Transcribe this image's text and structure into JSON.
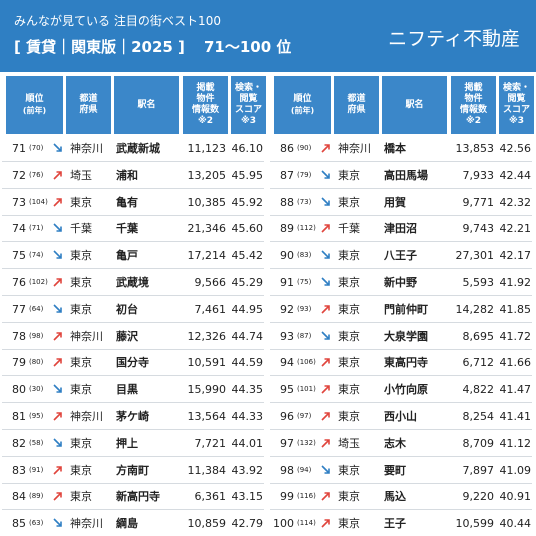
{
  "header": {
    "title": "みんなが見ている 注目の街ベスト100",
    "edition": "[ 賃貸｜関東版｜2025 ]",
    "range": "71〜100 位",
    "brand": "ニフティ不動産"
  },
  "columns": [
    [
      "順位",
      "(前年)"
    ],
    [
      "都道",
      "府県"
    ],
    [
      "駅名"
    ],
    [
      "掲載",
      "物件",
      "情報数",
      "※2"
    ],
    [
      "検索・",
      "閲覧",
      "スコア",
      "※3"
    ]
  ],
  "tables": [
    {
      "rows": [
        {
          "rank": "71",
          "prev": "(70)",
          "trend": "down",
          "pref": "神奈川",
          "station": "武蔵新城",
          "listings": "11,123",
          "score": "46.10"
        },
        {
          "rank": "72",
          "prev": "(76)",
          "trend": "up",
          "pref": "埼玉",
          "station": "浦和",
          "listings": "13,205",
          "score": "45.95"
        },
        {
          "rank": "73",
          "prev": "(104)",
          "trend": "up",
          "pref": "東京",
          "station": "亀有",
          "listings": "10,385",
          "score": "45.92"
        },
        {
          "rank": "74",
          "prev": "(71)",
          "trend": "down",
          "pref": "千葉",
          "station": "千葉",
          "listings": "21,346",
          "score": "45.60"
        },
        {
          "rank": "75",
          "prev": "(74)",
          "trend": "down",
          "pref": "東京",
          "station": "亀戸",
          "listings": "17,214",
          "score": "45.42"
        },
        {
          "rank": "76",
          "prev": "(102)",
          "trend": "up",
          "pref": "東京",
          "station": "武蔵境",
          "listings": "9,566",
          "score": "45.29"
        },
        {
          "rank": "77",
          "prev": "(64)",
          "trend": "down",
          "pref": "東京",
          "station": "初台",
          "listings": "7,461",
          "score": "44.95"
        },
        {
          "rank": "78",
          "prev": "(98)",
          "trend": "up",
          "pref": "神奈川",
          "station": "藤沢",
          "listings": "12,326",
          "score": "44.74"
        },
        {
          "rank": "79",
          "prev": "(80)",
          "trend": "up",
          "pref": "東京",
          "station": "国分寺",
          "listings": "10,591",
          "score": "44.59"
        },
        {
          "rank": "80",
          "prev": "(30)",
          "trend": "down",
          "pref": "東京",
          "station": "目黒",
          "listings": "15,990",
          "score": "44.35"
        },
        {
          "rank": "81",
          "prev": "(95)",
          "trend": "up",
          "pref": "神奈川",
          "station": "茅ケ崎",
          "listings": "13,564",
          "score": "44.33"
        },
        {
          "rank": "82",
          "prev": "(58)",
          "trend": "down",
          "pref": "東京",
          "station": "押上",
          "listings": "7,721",
          "score": "44.01"
        },
        {
          "rank": "83",
          "prev": "(91)",
          "trend": "up",
          "pref": "東京",
          "station": "方南町",
          "listings": "11,384",
          "score": "43.92"
        },
        {
          "rank": "84",
          "prev": "(89)",
          "trend": "up",
          "pref": "東京",
          "station": "新高円寺",
          "listings": "6,361",
          "score": "43.15"
        },
        {
          "rank": "85",
          "prev": "(63)",
          "trend": "down",
          "pref": "神奈川",
          "station": "綱島",
          "listings": "10,859",
          "score": "42.79"
        }
      ]
    },
    {
      "rows": [
        {
          "rank": "86",
          "prev": "(90)",
          "trend": "up",
          "pref": "神奈川",
          "station": "橋本",
          "listings": "13,853",
          "score": "42.56"
        },
        {
          "rank": "87",
          "prev": "(79)",
          "trend": "down",
          "pref": "東京",
          "station": "高田馬場",
          "listings": "7,933",
          "score": "42.44"
        },
        {
          "rank": "88",
          "prev": "(73)",
          "trend": "down",
          "pref": "東京",
          "station": "用賀",
          "listings": "9,771",
          "score": "42.32"
        },
        {
          "rank": "89",
          "prev": "(112)",
          "trend": "up",
          "pref": "千葉",
          "station": "津田沼",
          "listings": "9,743",
          "score": "42.21"
        },
        {
          "rank": "90",
          "prev": "(83)",
          "trend": "down",
          "pref": "東京",
          "station": "八王子",
          "listings": "27,301",
          "score": "42.17"
        },
        {
          "rank": "91",
          "prev": "(75)",
          "trend": "down",
          "pref": "東京",
          "station": "新中野",
          "listings": "5,593",
          "score": "41.92"
        },
        {
          "rank": "92",
          "prev": "(93)",
          "trend": "up",
          "pref": "東京",
          "station": "門前仲町",
          "listings": "14,282",
          "score": "41.85"
        },
        {
          "rank": "93",
          "prev": "(87)",
          "trend": "down",
          "pref": "東京",
          "station": "大泉学園",
          "listings": "8,695",
          "score": "41.72"
        },
        {
          "rank": "94",
          "prev": "(106)",
          "trend": "up",
          "pref": "東京",
          "station": "東高円寺",
          "listings": "6,712",
          "score": "41.66"
        },
        {
          "rank": "95",
          "prev": "(101)",
          "trend": "up",
          "pref": "東京",
          "station": "小竹向原",
          "listings": "4,822",
          "score": "41.47"
        },
        {
          "rank": "96",
          "prev": "(97)",
          "trend": "up",
          "pref": "東京",
          "station": "西小山",
          "listings": "8,254",
          "score": "41.41"
        },
        {
          "rank": "97",
          "prev": "(132)",
          "trend": "up",
          "pref": "埼玉",
          "station": "志木",
          "listings": "8,709",
          "score": "41.12"
        },
        {
          "rank": "98",
          "prev": "(94)",
          "trend": "down",
          "pref": "東京",
          "station": "要町",
          "listings": "7,897",
          "score": "41.09"
        },
        {
          "rank": "99",
          "prev": "(116)",
          "trend": "up",
          "pref": "東京",
          "station": "馬込",
          "listings": "9,220",
          "score": "40.91"
        },
        {
          "rank": "100",
          "prev": "(114)",
          "trend": "up",
          "pref": "東京",
          "station": "王子",
          "listings": "10,599",
          "score": "40.44"
        }
      ]
    }
  ]
}
